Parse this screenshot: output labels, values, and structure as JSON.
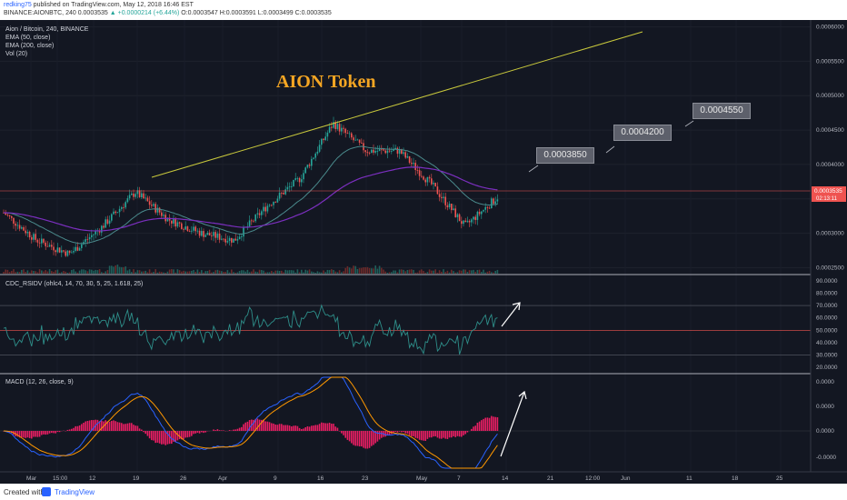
{
  "header": {
    "user": "redking75",
    "published": "published on TradingView.com, May 12, 2018 16:46 EST",
    "ticker_line_prefix": "BINANCE:AIONBTC, 240",
    "last_price": "0.0003535",
    "change": "▲ +0.0000214 (+6.44%)",
    "ohlc": "O:0.0003547 H:0.0003591 L:0.0003499 C:0.0003535"
  },
  "legend": {
    "symbol": "Aion / Bitcoin, 240, BINANCE",
    "ema50": "EMA (50, close)",
    "ema200": "EMA (200, close)",
    "vol": "Vol (20)",
    "rsi": "CDC_RSIDV (ohlc4, 14, 70, 30, 5, 25, 1.618, 25)",
    "macd": "MACD (12, 26, close, 9)"
  },
  "annotations": {
    "title": "AION Token",
    "target1": "0.0003850",
    "target2": "0.0004200",
    "target3": "0.0004550"
  },
  "price_axis": {
    "ticks": [
      "0.0006000",
      "0.0005500",
      "0.0005000",
      "0.0004500",
      "0.0004000",
      "0.0003500",
      "0.0003000",
      "0.0002500"
    ],
    "current": "0.0003535",
    "countdown": "02:13:11"
  },
  "rsi_axis": {
    "ticks": [
      "90.0000",
      "80.0000",
      "70.0000",
      "60.0000",
      "50.0000",
      "40.0000",
      "30.0000",
      "20.0000"
    ]
  },
  "macd_axis": {
    "ticks": [
      "0.0000",
      "0.0000",
      "0.0000",
      "-0.0000"
    ]
  },
  "time_axis": {
    "ticks": [
      "Mar",
      "15:00",
      "12",
      "19",
      "26",
      "Apr",
      "9",
      "16",
      "23",
      "May",
      "7",
      "14",
      "21",
      "12:00",
      "Jun",
      "11",
      "18",
      "25"
    ]
  },
  "footer": {
    "created": "Created with",
    "brand": "TradingView"
  },
  "colors": {
    "bg": "#131722",
    "up": "#26a69a",
    "down": "#ef5350",
    "ema50": "#4a8a8c",
    "ema200": "#7b2fbf",
    "trend": "#c8c83c",
    "title": "#f5a623",
    "rsi": "#2e8f8a",
    "macd": "#2962ff",
    "signal": "#ff9800",
    "hist": "#e91e63"
  },
  "chart_data": {
    "type": "line",
    "title": "AION Token",
    "price_series_approx": [
      {
        "date": "Mar 1",
        "close": 0.00033
      },
      {
        "date": "Mar 8",
        "close": 0.00029
      },
      {
        "date": "Mar 12",
        "close": 0.00027
      },
      {
        "date": "Mar 15",
        "close": 0.00031
      },
      {
        "date": "Mar 19",
        "close": 0.00036
      },
      {
        "date": "Mar 26",
        "close": 0.00032
      },
      {
        "date": "Apr 2",
        "close": 0.0003
      },
      {
        "date": "Apr 9",
        "close": 0.00029
      },
      {
        "date": "Apr 16",
        "close": 0.00034
      },
      {
        "date": "Apr 20",
        "close": 0.00038
      },
      {
        "date": "Apr 23",
        "close": 0.00046
      },
      {
        "date": "Apr 26",
        "close": 0.00042
      },
      {
        "date": "May 1",
        "close": 0.00042
      },
      {
        "date": "May 4",
        "close": 0.00037
      },
      {
        "date": "May 8",
        "close": 0.00031
      },
      {
        "date": "May 12",
        "close": 0.0003535
      }
    ],
    "ylim": [
      0.00024,
      0.00061
    ],
    "targets": [
      0.000385,
      0.00042,
      0.000455
    ]
  }
}
